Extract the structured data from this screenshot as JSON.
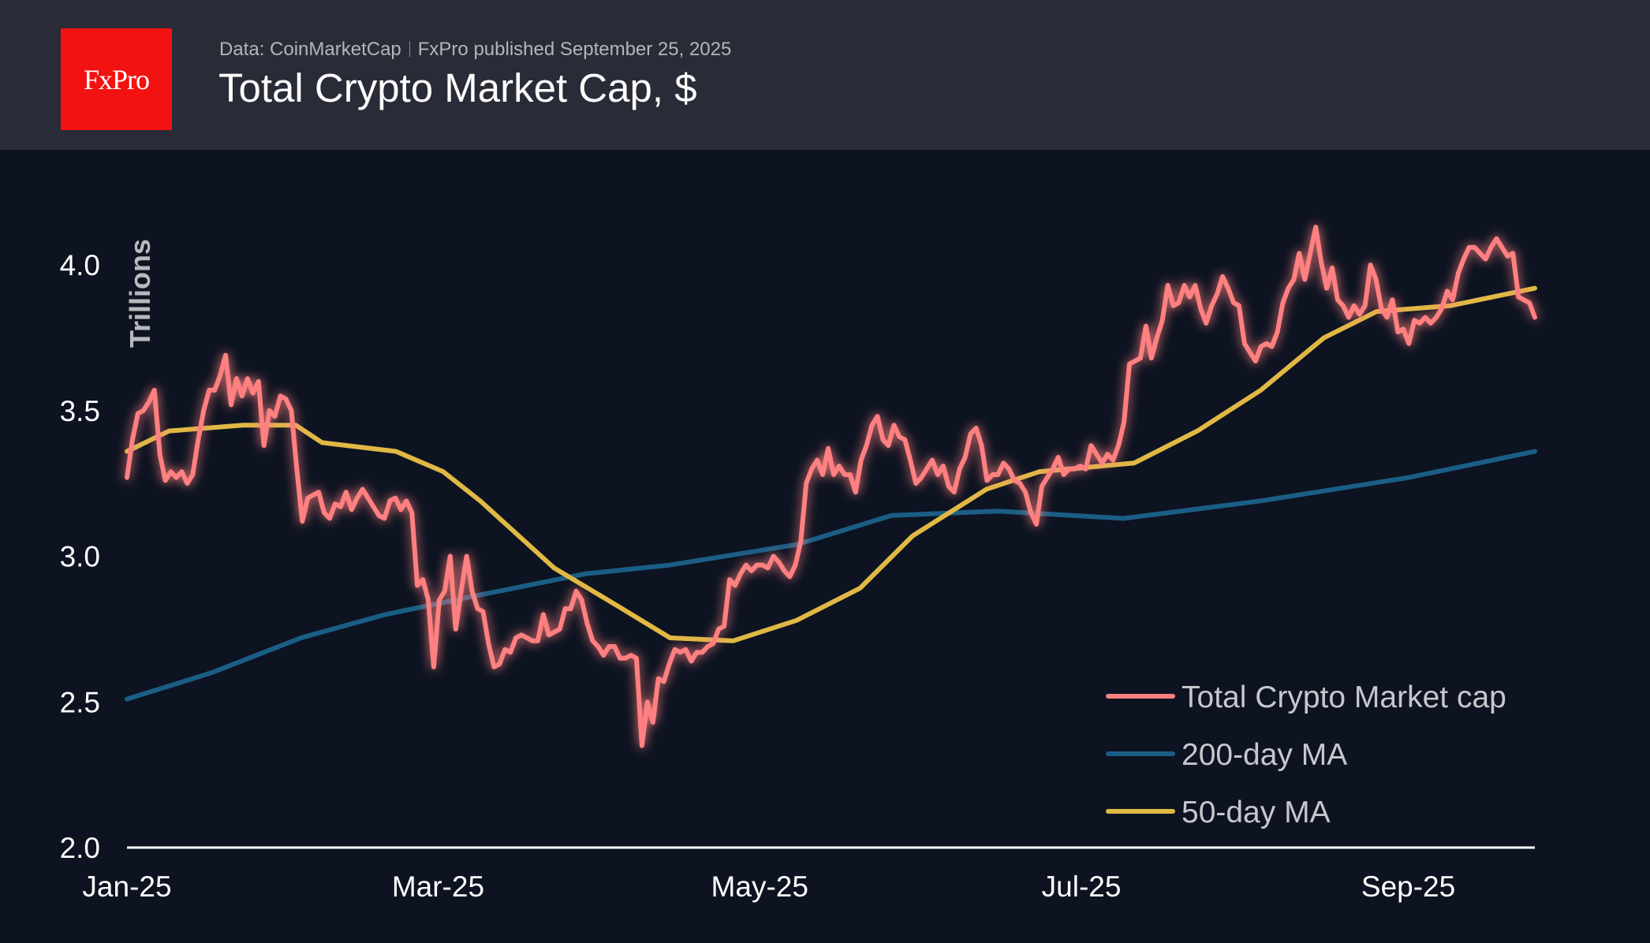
{
  "header": {
    "logo_text": "FxPro",
    "source": "Data: CoinMarketCap",
    "published": "FxPro published September 25, 2025",
    "title": "Total Crypto Market Cap, $"
  },
  "chart_data": {
    "type": "line",
    "title": "Total Crypto Market Cap, $",
    "ylabel": "Trillions",
    "xlabel": "",
    "ylim": [
      2.0,
      4.2
    ],
    "xlim": [
      "2025-01-01",
      "2025-09-25"
    ],
    "yticks": [
      "2.0",
      "2.5",
      "3.0",
      "3.5",
      "4.0"
    ],
    "ytick_values": [
      2.0,
      2.5,
      3.0,
      3.5,
      4.0
    ],
    "xticks": [
      {
        "label": "Jan-25",
        "date": "2025-01-01"
      },
      {
        "label": "Mar-25",
        "date": "2025-03-01"
      },
      {
        "label": "May-25",
        "date": "2025-05-01"
      },
      {
        "label": "Jul-25",
        "date": "2025-07-01"
      },
      {
        "label": "Sep-25",
        "date": "2025-09-01"
      }
    ],
    "grid": false,
    "legend_position": "bottom-right",
    "series": [
      {
        "name": "Total Crypto Market cap",
        "color": "#ff8080",
        "sampling": "daily, evenly spaced over xlim",
        "values": [
          3.27,
          3.4,
          3.49,
          3.5,
          3.53,
          3.57,
          3.35,
          3.26,
          3.29,
          3.27,
          3.29,
          3.25,
          3.28,
          3.4,
          3.5,
          3.57,
          3.57,
          3.62,
          3.69,
          3.52,
          3.61,
          3.55,
          3.61,
          3.56,
          3.6,
          3.38,
          3.5,
          3.48,
          3.55,
          3.54,
          3.5,
          3.3,
          3.12,
          3.2,
          3.21,
          3.22,
          3.15,
          3.13,
          3.18,
          3.17,
          3.22,
          3.16,
          3.2,
          3.23,
          3.2,
          3.17,
          3.14,
          3.13,
          3.19,
          3.2,
          3.16,
          3.19,
          3.15,
          2.9,
          2.92,
          2.85,
          2.62,
          2.85,
          2.88,
          3.0,
          2.75,
          2.88,
          3.0,
          2.88,
          2.82,
          2.81,
          2.7,
          2.62,
          2.63,
          2.68,
          2.67,
          2.72,
          2.73,
          2.72,
          2.71,
          2.71,
          2.8,
          2.73,
          2.74,
          2.75,
          2.82,
          2.82,
          2.88,
          2.85,
          2.77,
          2.71,
          2.69,
          2.66,
          2.69,
          2.69,
          2.65,
          2.65,
          2.66,
          2.65,
          2.35,
          2.5,
          2.43,
          2.58,
          2.57,
          2.63,
          2.68,
          2.67,
          2.68,
          2.64,
          2.67,
          2.67,
          2.69,
          2.7,
          2.75,
          2.76,
          2.92,
          2.9,
          2.94,
          2.97,
          2.95,
          2.97,
          2.97,
          2.96,
          3.0,
          2.98,
          2.95,
          2.93,
          2.97,
          3.05,
          3.25,
          3.3,
          3.33,
          3.28,
          3.37,
          3.28,
          3.31,
          3.28,
          3.28,
          3.22,
          3.33,
          3.38,
          3.45,
          3.48,
          3.4,
          3.38,
          3.45,
          3.41,
          3.4,
          3.33,
          3.25,
          3.27,
          3.3,
          3.33,
          3.28,
          3.31,
          3.24,
          3.22,
          3.3,
          3.34,
          3.42,
          3.44,
          3.38,
          3.26,
          3.28,
          3.28,
          3.32,
          3.3,
          3.26,
          3.25,
          3.22,
          3.15,
          3.11,
          3.24,
          3.27,
          3.3,
          3.34,
          3.28,
          3.3,
          3.3,
          3.31,
          3.3,
          3.38,
          3.35,
          3.32,
          3.35,
          3.33,
          3.38,
          3.46,
          3.66,
          3.67,
          3.68,
          3.79,
          3.68,
          3.75,
          3.81,
          3.93,
          3.86,
          3.87,
          3.93,
          3.89,
          3.93,
          3.85,
          3.8,
          3.86,
          3.9,
          3.96,
          3.92,
          3.87,
          3.86,
          3.73,
          3.7,
          3.67,
          3.72,
          3.73,
          3.72,
          3.77,
          3.87,
          3.92,
          3.95,
          4.04,
          3.95,
          4.04,
          4.13,
          4.01,
          3.92,
          3.99,
          3.88,
          3.86,
          3.82,
          3.86,
          3.83,
          3.86,
          4.0,
          3.95,
          3.85,
          3.82,
          3.88,
          3.77,
          3.78,
          3.73,
          3.81,
          3.8,
          3.82,
          3.8,
          3.82,
          3.85,
          3.91,
          3.88,
          3.97,
          4.02,
          4.06,
          4.06,
          4.04,
          4.02,
          4.06,
          4.09,
          4.06,
          4.03,
          4.04,
          3.89,
          3.88,
          3.87,
          3.82
        ]
      },
      {
        "name": "200-day MA",
        "color": "#1b5e85",
        "points": [
          [
            "2025-01-01",
            2.51
          ],
          [
            "2025-01-17",
            2.6
          ],
          [
            "2025-02-03",
            2.72
          ],
          [
            "2025-02-19",
            2.8
          ],
          [
            "2025-03-07",
            2.86
          ],
          [
            "2025-03-29",
            2.94
          ],
          [
            "2025-04-14",
            2.97
          ],
          [
            "2025-05-08",
            3.04
          ],
          [
            "2025-05-26",
            3.14
          ],
          [
            "2025-06-15",
            3.155
          ],
          [
            "2025-07-09",
            3.13
          ],
          [
            "2025-08-04",
            3.19
          ],
          [
            "2025-09-01",
            3.27
          ],
          [
            "2025-09-25",
            3.36
          ]
        ]
      },
      {
        "name": "50-day MA",
        "color": "#e0b844",
        "points": [
          [
            "2025-01-01",
            3.36
          ],
          [
            "2025-01-09",
            3.43
          ],
          [
            "2025-01-23",
            3.45
          ],
          [
            "2025-02-02",
            3.45
          ],
          [
            "2025-02-07",
            3.39
          ],
          [
            "2025-02-21",
            3.36
          ],
          [
            "2025-03-02",
            3.29
          ],
          [
            "2025-03-09",
            3.19
          ],
          [
            "2025-03-23",
            2.96
          ],
          [
            "2025-04-04",
            2.83
          ],
          [
            "2025-04-14",
            2.72
          ],
          [
            "2025-04-26",
            2.71
          ],
          [
            "2025-05-08",
            2.78
          ],
          [
            "2025-05-20",
            2.89
          ],
          [
            "2025-05-30",
            3.07
          ],
          [
            "2025-06-13",
            3.23
          ],
          [
            "2025-06-23",
            3.29
          ],
          [
            "2025-07-11",
            3.32
          ],
          [
            "2025-07-23",
            3.43
          ],
          [
            "2025-08-04",
            3.57
          ],
          [
            "2025-08-16",
            3.75
          ],
          [
            "2025-08-26",
            3.84
          ],
          [
            "2025-09-09",
            3.86
          ],
          [
            "2025-09-25",
            3.92
          ]
        ]
      }
    ]
  }
}
